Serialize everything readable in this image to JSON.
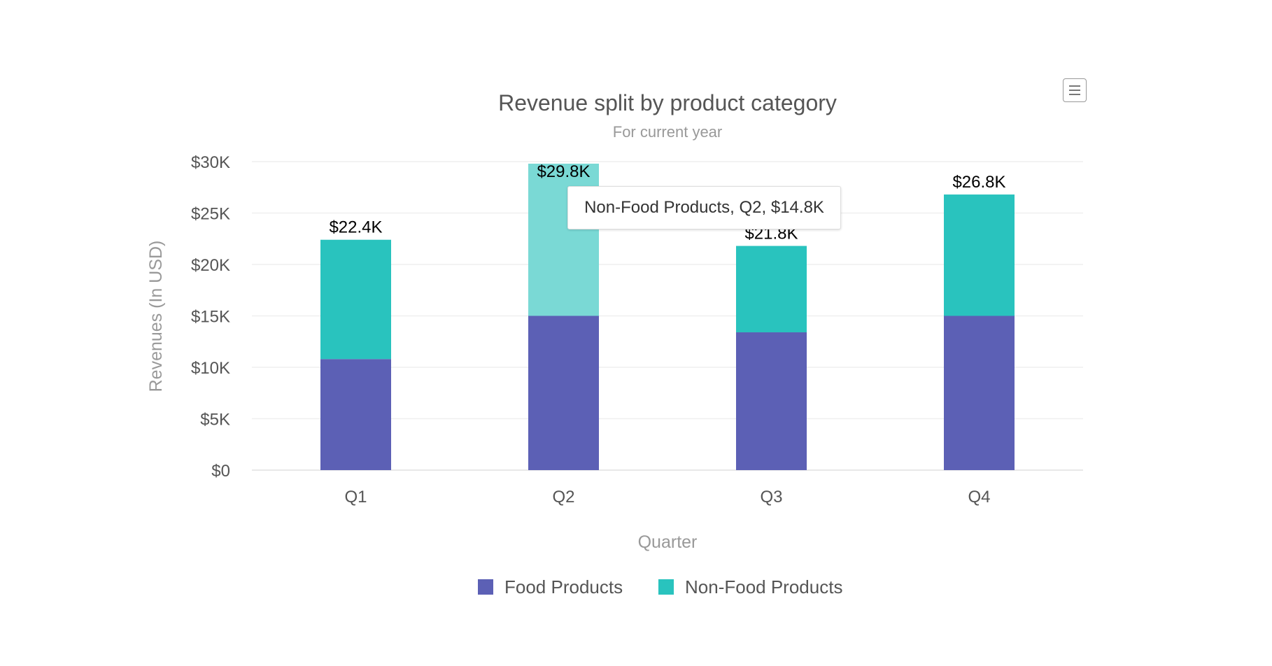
{
  "chart_data": {
    "type": "bar",
    "stacked": true,
    "title": "Revenue split by product category",
    "subtitle": "For current year",
    "xlabel": "Quarter",
    "ylabel": "Revenues (In USD)",
    "categories": [
      "Q1",
      "Q2",
      "Q3",
      "Q4"
    ],
    "ylim": [
      0,
      30000
    ],
    "yticks": [
      0,
      5000,
      10000,
      15000,
      20000,
      25000,
      30000
    ],
    "ytick_labels": [
      "$0",
      "$5K",
      "$10K",
      "$15K",
      "$20K",
      "$25K",
      "$30K"
    ],
    "grid": true,
    "legend_position": "bottom",
    "series": [
      {
        "name": "Food Products",
        "color": "#5c60b5",
        "values": [
          10800,
          15000,
          13400,
          15000
        ]
      },
      {
        "name": "Non-Food Products",
        "color": "#29c3be",
        "hover_color": "#7ad9d5",
        "values": [
          11600,
          14800,
          8400,
          11800
        ]
      }
    ],
    "total_labels": [
      "$22.4K",
      "$29.8K",
      "$21.8K",
      "$26.8K"
    ],
    "tooltip": {
      "text": "Non-Food Products, Q2, $14.8K",
      "series": 1,
      "category": 1
    }
  },
  "toolbar": {
    "menu_icon": "hamburger-menu-icon"
  }
}
